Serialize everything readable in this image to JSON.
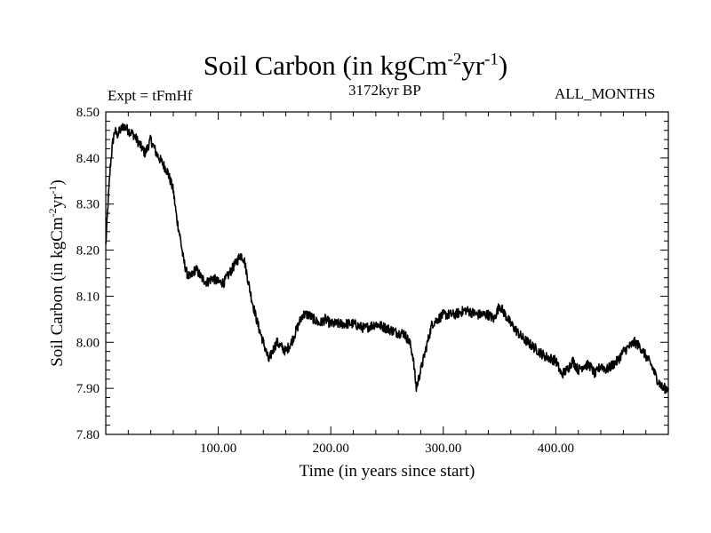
{
  "title": {
    "main": "Soil Carbon (in kgCm",
    "exp1": "-2",
    "mid": "yr",
    "exp2": "-1",
    "end": ")"
  },
  "expt_label": "Expt = tFmHf",
  "period_label": "3172kyr BP",
  "months_label": "ALL_MONTHS",
  "chart_data": {
    "type": "line",
    "title": "Soil Carbon (in kgCm-2yr-1)",
    "xlabel": "Time (in years since start)",
    "ylabel": "Soil Carbon (in kgCm-2yr-1)",
    "xlim": [
      0,
      500
    ],
    "ylim": [
      7.8,
      8.5
    ],
    "x_ticks": [
      100,
      200,
      300,
      400
    ],
    "x_tick_labels": [
      "100.00",
      "200.00",
      "300.00",
      "400.00"
    ],
    "y_ticks": [
      7.8,
      7.9,
      8.0,
      8.1,
      8.2,
      8.3,
      8.4,
      8.5
    ],
    "y_tick_labels": [
      "7.80",
      "7.90",
      "8.00",
      "8.10",
      "8.20",
      "8.30",
      "8.40",
      "8.50"
    ],
    "grid": false,
    "line_color": "#000000",
    "series": [
      {
        "x": [
          0,
          2,
          4,
          6,
          8,
          10,
          13,
          16,
          20,
          25,
          30,
          35,
          40,
          45,
          50,
          55,
          60,
          63,
          66,
          69,
          72,
          75,
          80,
          85,
          90,
          95,
          100,
          105,
          110,
          115,
          120,
          123,
          126,
          130,
          135,
          140,
          145,
          148,
          152,
          156,
          160,
          165,
          170,
          175,
          180,
          185,
          190,
          195,
          200,
          210,
          220,
          230,
          240,
          250,
          260,
          265,
          270,
          273,
          276,
          279,
          282,
          285,
          290,
          295,
          300,
          310,
          320,
          330,
          340,
          345,
          350,
          355,
          360,
          370,
          380,
          390,
          400,
          405,
          410,
          415,
          420,
          425,
          430,
          435,
          440,
          445,
          450,
          455,
          460,
          465,
          470,
          475,
          480,
          485,
          490,
          495,
          500
        ],
        "y": [
          8.21,
          8.3,
          8.38,
          8.43,
          8.46,
          8.45,
          8.46,
          8.47,
          8.46,
          8.45,
          8.43,
          8.41,
          8.44,
          8.41,
          8.39,
          8.37,
          8.33,
          8.27,
          8.23,
          8.18,
          8.15,
          8.14,
          8.16,
          8.14,
          8.13,
          8.14,
          8.13,
          8.13,
          8.15,
          8.17,
          8.19,
          8.18,
          8.14,
          8.09,
          8.04,
          8.0,
          7.96,
          7.98,
          8.0,
          7.99,
          7.98,
          8.0,
          8.03,
          8.06,
          8.06,
          8.05,
          8.04,
          8.05,
          8.04,
          8.04,
          8.04,
          8.03,
          8.04,
          8.03,
          8.02,
          8.02,
          8.0,
          7.97,
          7.9,
          7.93,
          7.96,
          7.99,
          8.04,
          8.05,
          8.06,
          8.06,
          8.07,
          8.06,
          8.06,
          8.05,
          8.08,
          8.06,
          8.04,
          8.01,
          7.99,
          7.97,
          7.96,
          7.93,
          7.94,
          7.96,
          7.94,
          7.95,
          7.95,
          7.93,
          7.95,
          7.94,
          7.95,
          7.96,
          7.98,
          7.99,
          8.0,
          7.99,
          7.97,
          7.95,
          7.92,
          7.9,
          7.9
        ]
      }
    ]
  }
}
